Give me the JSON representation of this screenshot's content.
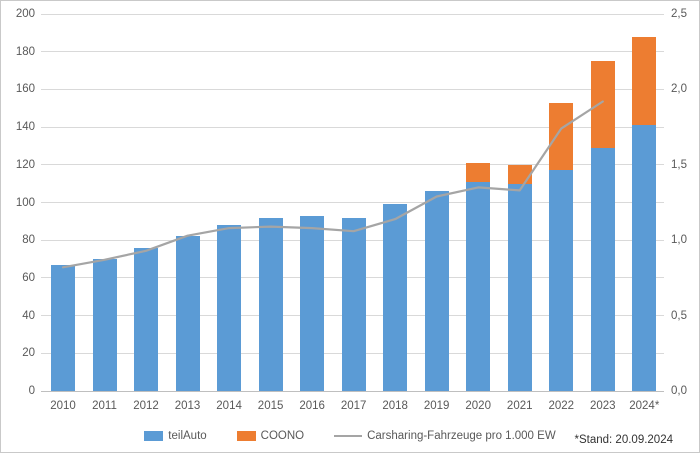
{
  "footnote": "*Stand: 20.09.2024",
  "colors": {
    "teilauto_blue": "#5B9BD5",
    "coono_orange": "#ED7D31",
    "line_gray": "#A5A5A5",
    "gridline": "#D9D9D9",
    "axis_line": "#BFBFBF",
    "text": "#595959"
  },
  "chart_data": {
    "type": "bar",
    "subtype": "stacked-bar-with-line",
    "grid": true,
    "legend_position": "bottom",
    "categories": [
      "2010",
      "2011",
      "2012",
      "2013",
      "2014",
      "2015",
      "2016",
      "2017",
      "2018",
      "2019",
      "2020",
      "2021",
      "2022",
      "2023",
      "2024*"
    ],
    "series": [
      {
        "name": "teilAuto",
        "type": "bar",
        "axis": "left",
        "color": "#5B9BD5",
        "values": [
          67,
          70,
          76,
          82,
          88,
          92,
          93,
          92,
          99,
          106,
          111,
          110,
          117,
          129,
          141
        ]
      },
      {
        "name": "COONO",
        "type": "bar",
        "axis": "left",
        "color": "#ED7D31",
        "values": [
          0,
          0,
          0,
          0,
          0,
          0,
          0,
          0,
          0,
          0,
          10,
          10,
          36,
          46,
          47
        ]
      },
      {
        "name": "Carsharing-Fahrzeuge pro 1.000 EW",
        "type": "line",
        "axis": "right",
        "color": "#A5A5A5",
        "values": [
          0.82,
          0.87,
          0.93,
          1.03,
          1.08,
          1.09,
          1.08,
          1.06,
          1.14,
          1.29,
          1.35,
          1.33,
          1.74,
          1.92,
          null
        ]
      }
    ],
    "left_axis": {
      "min": 0,
      "max": 200,
      "step": 20,
      "ticks": [
        200,
        180,
        160,
        140,
        120,
        100,
        80,
        60,
        40,
        20,
        0
      ]
    },
    "right_axis": {
      "min": 0,
      "max": 2.5,
      "step": 0.5,
      "tick_labels": [
        "2,5",
        "2,0",
        "1,5",
        "1,0",
        "0,5",
        "0,0"
      ]
    },
    "stacked_totals_note": {
      "2020": 121,
      "2021": 120,
      "2022": 153,
      "2023": 175,
      "2024*": 188
    }
  }
}
